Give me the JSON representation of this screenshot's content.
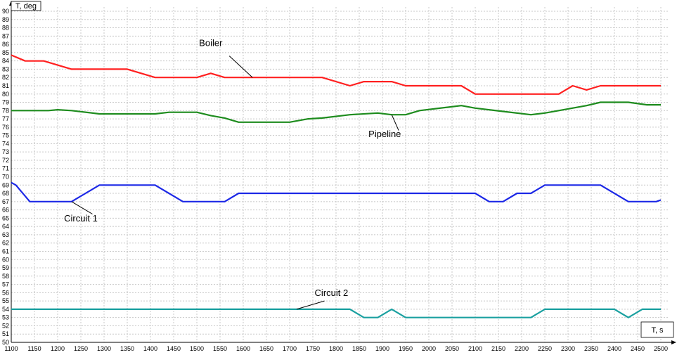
{
  "chart_data": {
    "type": "line",
    "xlabel": "T, s",
    "ylabel": "T, deg",
    "xlim": [
      1100,
      2500
    ],
    "ylim": [
      50,
      90
    ],
    "xticks": [
      1100,
      1150,
      1200,
      1250,
      1300,
      1350,
      1400,
      1450,
      1500,
      1550,
      1600,
      1650,
      1700,
      1750,
      1800,
      1850,
      1900,
      1950,
      2000,
      2050,
      2100,
      2150,
      2200,
      2250,
      2300,
      2350,
      2400,
      2450,
      2500
    ],
    "grid": true,
    "series": [
      {
        "name": "Boiler",
        "color": "#ff2020",
        "points": [
          [
            1100,
            84.7
          ],
          [
            1130,
            84
          ],
          [
            1170,
            84
          ],
          [
            1230,
            83
          ],
          [
            1350,
            83
          ],
          [
            1410,
            82
          ],
          [
            1500,
            82
          ],
          [
            1530,
            82.5
          ],
          [
            1560,
            82
          ],
          [
            1770,
            82
          ],
          [
            1830,
            81
          ],
          [
            1860,
            81.5
          ],
          [
            1920,
            81.5
          ],
          [
            1950,
            81
          ],
          [
            2070,
            81
          ],
          [
            2100,
            80
          ],
          [
            2280,
            80
          ],
          [
            2310,
            81
          ],
          [
            2340,
            80.5
          ],
          [
            2370,
            81
          ],
          [
            2500,
            81
          ]
        ],
        "label": {
          "text": "Boiler",
          "x": 1530,
          "y": 85.8,
          "leader": [
            [
              1570,
              84.6
            ],
            [
              1620,
              82
            ]
          ]
        }
      },
      {
        "name": "Pipeline",
        "color": "#1e8c1e",
        "points": [
          [
            1100,
            78
          ],
          [
            1180,
            78
          ],
          [
            1200,
            78.1
          ],
          [
            1230,
            78
          ],
          [
            1290,
            77.6
          ],
          [
            1410,
            77.6
          ],
          [
            1440,
            77.8
          ],
          [
            1500,
            77.8
          ],
          [
            1530,
            77.4
          ],
          [
            1560,
            77.1
          ],
          [
            1590,
            76.6
          ],
          [
            1700,
            76.6
          ],
          [
            1740,
            77
          ],
          [
            1770,
            77.1
          ],
          [
            1830,
            77.5
          ],
          [
            1890,
            77.7
          ],
          [
            1920,
            77.5
          ],
          [
            1950,
            77.5
          ],
          [
            1980,
            78
          ],
          [
            2040,
            78.4
          ],
          [
            2070,
            78.6
          ],
          [
            2100,
            78.3
          ],
          [
            2160,
            77.9
          ],
          [
            2220,
            77.5
          ],
          [
            2250,
            77.7
          ],
          [
            2280,
            78
          ],
          [
            2340,
            78.6
          ],
          [
            2370,
            79
          ],
          [
            2430,
            79
          ],
          [
            2470,
            78.7
          ],
          [
            2500,
            78.7
          ]
        ],
        "label": {
          "text": "Pipeline",
          "x": 1905,
          "y": 74.8,
          "leader": [
            [
              1935,
              75.6
            ],
            [
              1920,
              77.5
            ]
          ]
        }
      },
      {
        "name": "Circuit 1",
        "color": "#1c28e6",
        "points": [
          [
            1100,
            69.3
          ],
          [
            1110,
            69
          ],
          [
            1140,
            67
          ],
          [
            1230,
            67
          ],
          [
            1290,
            69
          ],
          [
            1410,
            69
          ],
          [
            1470,
            67
          ],
          [
            1560,
            67
          ],
          [
            1590,
            68
          ],
          [
            2100,
            68
          ],
          [
            2130,
            67
          ],
          [
            2160,
            67
          ],
          [
            2190,
            68
          ],
          [
            2220,
            68
          ],
          [
            2250,
            69
          ],
          [
            2370,
            69
          ],
          [
            2430,
            67
          ],
          [
            2490,
            67
          ],
          [
            2500,
            67.2
          ]
        ],
        "label": {
          "text": "Circuit 1",
          "x": 1250,
          "y": 64.6,
          "leader": [
            [
              1275,
              65.5
            ],
            [
              1230,
              67
            ]
          ]
        }
      },
      {
        "name": "Circuit 2",
        "color": "#1aa0a0",
        "points": [
          [
            1100,
            54
          ],
          [
            1830,
            54
          ],
          [
            1860,
            53
          ],
          [
            1890,
            53
          ],
          [
            1920,
            54
          ],
          [
            1950,
            53
          ],
          [
            2220,
            53
          ],
          [
            2250,
            54
          ],
          [
            2400,
            54
          ],
          [
            2430,
            53
          ],
          [
            2460,
            54
          ],
          [
            2500,
            54
          ]
        ],
        "label": {
          "text": "Circuit 2",
          "x": 1790,
          "y": 55.6,
          "leader": [
            [
              1775,
              55
            ],
            [
              1715,
              54
            ]
          ]
        }
      }
    ]
  }
}
